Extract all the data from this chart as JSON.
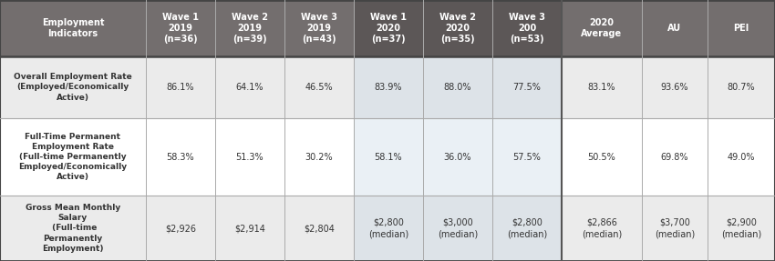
{
  "col_headers": [
    "Employment\nIndicators",
    "Wave 1\n2019\n(n=36)",
    "Wave 2\n2019\n(n=39)",
    "Wave 3\n2019\n(n=43)",
    "Wave 1\n2020\n(n=37)",
    "Wave 2\n2020\n(n=35)",
    "Wave 3\n200\n(n=53)",
    "2020\nAverage",
    "AU",
    "PEI"
  ],
  "row_labels_bold": [
    "Overall Employment Rate",
    "Full-Time Permanent\nEmployment Rate",
    "Gross Mean Monthly\nSalary"
  ],
  "row_labels_normal": [
    "(Employed/Economically\nActive)",
    "(Full-time Permanently\nEmployed/Economically\nActive)",
    " (Full-time\nPermanently\nEmployment)"
  ],
  "row_data": [
    [
      "86.1%",
      "64.1%",
      "46.5%",
      "83.9%",
      "88.0%",
      "77.5%",
      "83.1%",
      "93.6%",
      "80.7%"
    ],
    [
      "58.3%",
      "51.3%",
      "30.2%",
      "58.1%",
      "36.0%",
      "57.5%",
      "50.5%",
      "69.8%",
      "49.0%"
    ],
    [
      "$2,926",
      "$2,914",
      "$2,804",
      "$2,800\n(median)",
      "$3,000\n(median)",
      "$2,800\n(median)",
      "$2,866\n(median)",
      "$3,700\n(median)",
      "$2,900\n(median)"
    ]
  ],
  "header_col_left_bg": "#736e6e",
  "header_col_mid_bg": "#5c5757",
  "header_col_right_bg": "#736e6e",
  "row0_bg_left": "#ebebeb",
  "row0_bg_mid": "#dde3e8",
  "row0_bg_right": "#ebebeb",
  "row1_bg_left": "#ffffff",
  "row1_bg_mid": "#eaf0f5",
  "row1_bg_right": "#ffffff",
  "row2_bg_left": "#ebebeb",
  "row2_bg_mid": "#dde3e8",
  "row2_bg_right": "#ebebeb",
  "header_text_color": "#ffffff",
  "cell_text_color": "#333333",
  "border_light": "#bbbbbb",
  "border_dark": "#555555",
  "separator_color": "#555555"
}
